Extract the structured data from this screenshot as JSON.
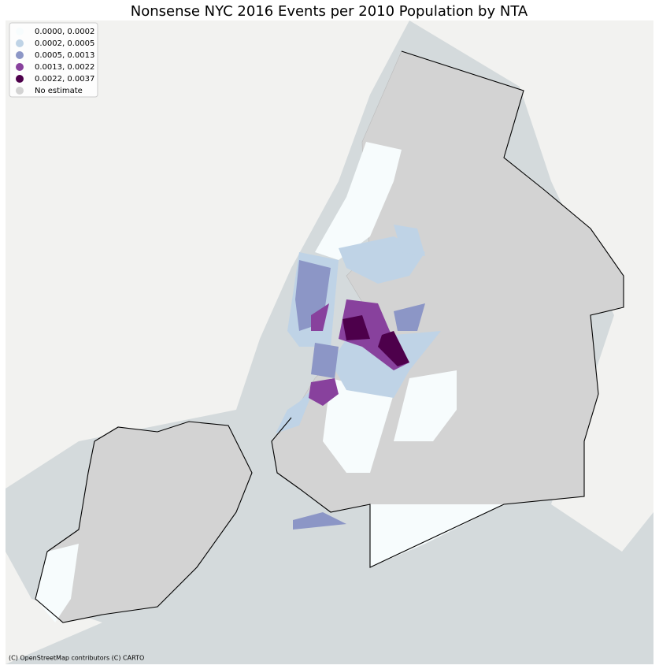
{
  "title": "Nonsense NYC 2016 Events per 2010 Population by NTA",
  "legend": {
    "items": [
      {
        "label": "0.0000, 0.0002",
        "color": "#f7fcfd"
      },
      {
        "label": "0.0002, 0.0005",
        "color": "#bfd3e6"
      },
      {
        "label": "0.0005, 0.0013",
        "color": "#8c96c6"
      },
      {
        "label": "0.0013, 0.0022",
        "color": "#88419d"
      },
      {
        "label": "0.0022, 0.0037",
        "color": "#4d004b"
      },
      {
        "label": "No estimate",
        "color": "#d3d3d3"
      }
    ]
  },
  "attribution": "(C) OpenStreetMap contributors (C) CARTO"
}
